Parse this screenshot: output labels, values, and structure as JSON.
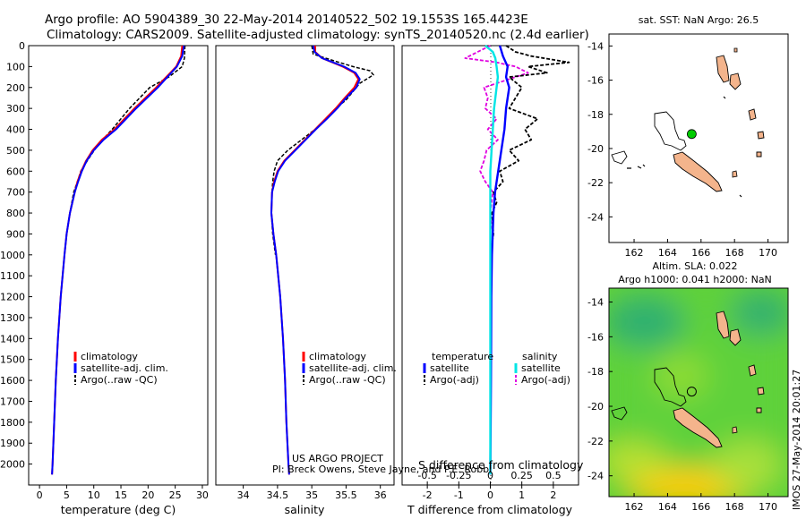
{
  "header": {
    "line1": "Argo profile: AO 5904389_30 22-May-2014 20140522_502 19.1553S 165.4423E",
    "line2": "Climatology: CARS2009. Satellite-adjusted climatology: synTS_20140520.nc (2.4d earlier)"
  },
  "colors": {
    "climatology": "#ff0000",
    "satellite": "#0000ff",
    "argo": "#000000",
    "temp_sat_diff": "#00e5e5",
    "sal_argo_diff": "#e000e0",
    "land": "#f4b48c",
    "argo_marker": "#00cc00"
  },
  "chart_data": [
    {
      "id": "temperature",
      "type": "line",
      "xlabel": "temperature (deg C)",
      "xlim": [
        -2,
        31
      ],
      "xticks": [
        0,
        5,
        10,
        15,
        20,
        25,
        30
      ],
      "ylim": [
        0,
        2100
      ],
      "yticks": [
        0,
        100,
        200,
        300,
        400,
        500,
        600,
        700,
        800,
        900,
        1000,
        1100,
        1200,
        1300,
        1400,
        1500,
        1600,
        1700,
        1800,
        1900,
        2000
      ],
      "legend": [
        "climatology",
        "satellite-adj. clim.",
        "Argo(..raw -QC)"
      ],
      "series": [
        {
          "name": "climatology",
          "depth": [
            0,
            50,
            100,
            200,
            300,
            400,
            450,
            500,
            550,
            600,
            650,
            700,
            800,
            900,
            1000,
            1200,
            1400,
            1600,
            1800,
            2000,
            2050
          ],
          "values": [
            26.3,
            26.1,
            25.2,
            21.5,
            17.5,
            13.8,
            11.5,
            9.8,
            8.6,
            7.7,
            7.0,
            6.5,
            5.6,
            5.0,
            4.6,
            3.9,
            3.4,
            3.0,
            2.7,
            2.4,
            2.3
          ]
        },
        {
          "name": "satellite-adj. clim.",
          "depth": [
            0,
            50,
            100,
            200,
            300,
            400,
            450,
            500,
            550,
            600,
            650,
            700,
            800,
            900,
            1000,
            1200,
            1400,
            1600,
            1800,
            2000,
            2050
          ],
          "values": [
            26.6,
            26.3,
            25.3,
            21.8,
            17.8,
            14.1,
            11.8,
            10.0,
            8.7,
            7.8,
            7.1,
            6.5,
            5.6,
            5.0,
            4.6,
            3.9,
            3.4,
            3.0,
            2.7,
            2.4,
            2.3
          ]
        },
        {
          "name": "Argo(..raw -QC)",
          "depth": [
            0,
            60,
            100,
            150,
            200,
            300,
            400,
            450,
            500,
            550,
            600,
            650,
            700,
            800,
            900,
            1000
          ],
          "values": [
            26.8,
            26.7,
            26.3,
            23.8,
            20.3,
            16.6,
            13.4,
            11.6,
            10.1,
            8.8,
            7.6,
            7.0,
            6.3,
            5.6,
            5.0,
            4.6
          ]
        }
      ]
    },
    {
      "id": "salinity",
      "type": "line",
      "xlabel": "salinity",
      "xlim": [
        33.6,
        36.2
      ],
      "xticks": [
        34,
        34.5,
        35,
        35.5,
        36
      ],
      "xticklabels": [
        "34",
        "34.5",
        "35",
        "35.5",
        "36"
      ],
      "ylim": [
        0,
        2100
      ],
      "legend": [
        "climatology",
        "satellite-adj. clim.",
        "Argo(..raw -QC)"
      ],
      "series": [
        {
          "name": "climatology",
          "depth": [
            0,
            30,
            60,
            100,
            130,
            160,
            200,
            250,
            300,
            350,
            400,
            450,
            500,
            550,
            600,
            650,
            700,
            800,
            900,
            1000,
            1200,
            1400,
            1600,
            1800,
            2000,
            2050
          ],
          "values": [
            35.05,
            35.05,
            35.15,
            35.45,
            35.62,
            35.68,
            35.62,
            35.48,
            35.35,
            35.2,
            35.05,
            34.9,
            34.75,
            34.6,
            34.5,
            34.45,
            34.42,
            34.41,
            34.44,
            34.48,
            34.54,
            34.58,
            34.61,
            34.63,
            34.66,
            34.67
          ]
        },
        {
          "name": "satellite-adj. clim.",
          "depth": [
            0,
            30,
            60,
            100,
            130,
            160,
            200,
            250,
            300,
            350,
            400,
            450,
            500,
            550,
            600,
            650,
            700,
            800,
            900,
            1000,
            1200,
            1400,
            1600,
            1800,
            2000,
            2050
          ],
          "values": [
            35.02,
            35.04,
            35.15,
            35.47,
            35.64,
            35.7,
            35.65,
            35.5,
            35.37,
            35.22,
            35.06,
            34.91,
            34.76,
            34.61,
            34.51,
            34.46,
            34.42,
            34.41,
            34.44,
            34.48,
            34.54,
            34.58,
            34.61,
            34.63,
            34.66,
            34.67
          ]
        },
        {
          "name": "Argo(..raw -QC)",
          "depth": [
            0,
            40,
            70,
            100,
            120,
            140,
            180,
            220,
            260,
            300,
            350,
            400,
            450,
            500,
            550,
            600,
            650,
            700,
            800,
            900,
            1000
          ],
          "values": [
            35.0,
            35.02,
            35.3,
            35.6,
            35.85,
            35.9,
            35.7,
            35.6,
            35.5,
            35.35,
            35.2,
            35.05,
            34.85,
            34.65,
            34.5,
            34.45,
            34.43,
            34.42,
            34.41,
            34.43,
            34.47
          ]
        }
      ]
    },
    {
      "id": "difference",
      "type": "line",
      "xlabel": "T difference from climatology",
      "xlabel2": "S difference from climatology",
      "xlim": [
        -2.8,
        2.8
      ],
      "xticks": [
        -2,
        -1,
        0,
        1,
        2
      ],
      "s_xticks": [
        -0.5,
        -0.25,
        0,
        0.25,
        0.5
      ],
      "s_xticklabels": [
        "-0.5",
        "-0.25",
        "0",
        "0.25",
        "0.5"
      ],
      "ylim": [
        0,
        2100
      ],
      "legend_groups": [
        {
          "header": "temperature",
          "items": [
            "satellite",
            "Argo(-adj)"
          ]
        },
        {
          "header": "salinity",
          "items": [
            "satellite",
            "Argo(-adj)"
          ]
        }
      ],
      "series": [
        {
          "name": "temperature satellite",
          "depth": [
            0,
            50,
            100,
            150,
            200,
            300,
            400,
            500,
            600,
            700,
            800,
            1000,
            1200,
            1600,
            2050
          ],
          "values": [
            0.3,
            0.4,
            0.55,
            0.5,
            0.6,
            0.5,
            0.45,
            0.35,
            0.25,
            0.15,
            0.1,
            0.05,
            0.03,
            0.02,
            0.0
          ]
        },
        {
          "name": "temperature Argo(-adj)",
          "depth": [
            0,
            30,
            50,
            80,
            100,
            130,
            150,
            200,
            250,
            300,
            350,
            400,
            450,
            500,
            550,
            600,
            650,
            700,
            750,
            800,
            900,
            1000
          ],
          "values": [
            0.5,
            0.8,
            1.3,
            2.5,
            1.2,
            1.8,
            0.6,
            1.0,
            0.8,
            0.6,
            1.5,
            1.1,
            1.3,
            0.6,
            0.9,
            0.3,
            0.4,
            0.1,
            0.2,
            0.05,
            0.1,
            0.0
          ]
        },
        {
          "name": "salinity satellite",
          "depth": [
            0,
            30,
            60,
            100,
            150,
            200,
            300,
            400,
            500,
            600,
            700,
            800,
            1000,
            1200,
            1600,
            2050
          ],
          "values": [
            -0.04,
            0.02,
            0.04,
            0.05,
            0.06,
            0.05,
            0.03,
            0.02,
            0.01,
            0.0,
            0.0,
            0.0,
            0.0,
            0.0,
            0.0,
            0.0
          ]
        },
        {
          "name": "salinity Argo(-adj)",
          "depth": [
            0,
            30,
            60,
            80,
            100,
            130,
            160,
            200,
            250,
            300,
            350,
            400,
            450,
            500,
            550,
            600,
            650,
            700,
            800,
            900,
            1000
          ],
          "values": [
            0.0,
            -0.1,
            -0.2,
            0.05,
            0.2,
            0.3,
            0.15,
            -0.05,
            -0.02,
            -0.04,
            0.05,
            -0.02,
            0.06,
            -0.03,
            -0.05,
            -0.08,
            -0.04,
            0.02,
            0.0,
            0.02,
            0.01
          ]
        }
      ]
    },
    {
      "id": "sst-map",
      "type": "map",
      "title": "sat. SST: NaN Argo: 26.5",
      "xlim": [
        160.5,
        171.2
      ],
      "ylim": [
        -25.5,
        -13.3
      ],
      "xticks": [
        162,
        164,
        166,
        168,
        170
      ],
      "yticks": [
        -14,
        -16,
        -18,
        -20,
        -22,
        -24
      ],
      "argo_position": [
        165.4423,
        -19.1553
      ]
    },
    {
      "id": "sla-map",
      "type": "heatmap",
      "title1": "Altim. SLA: 0.022",
      "title2": "Argo h1000: 0.041 h2000: NaN",
      "xlim": [
        160.5,
        171.2
      ],
      "ylim": [
        -25.2,
        -13.2
      ],
      "xticks": [
        162,
        164,
        166,
        168,
        170
      ],
      "yticks": [
        -14,
        -16,
        -18,
        -20,
        -22,
        -24
      ],
      "argo_position": [
        165.4423,
        -19.1553
      ]
    }
  ],
  "credits": {
    "project": "US ARGO PROJECT",
    "pi": "PI: Breck Owens, Steve Jayne, and P.E. Robbi",
    "stamp": "IMOS 27-May-2014 20:01:27"
  }
}
